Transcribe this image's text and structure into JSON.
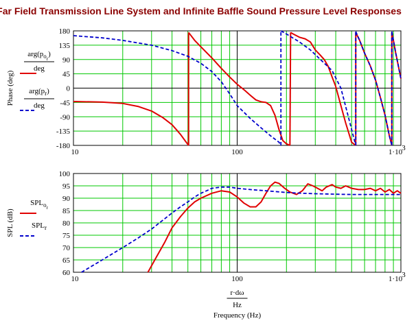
{
  "title": "Far Field Transmission Line System and Infinite Baffle Sound Pressure Level Responses",
  "colors": {
    "grid": "#00c800",
    "plot_bg": "#ffffff",
    "red": "#e00000",
    "blue": "#0000cc"
  },
  "chart_data": [
    {
      "type": "line",
      "xscale": "log",
      "xlim": [
        10,
        1000
      ],
      "ylim": [
        -180,
        180
      ],
      "yticks": [
        180,
        135,
        90,
        45,
        0,
        -45,
        -90,
        -135,
        -180
      ],
      "xtick_labels": [
        "10",
        "100",
        "1·10"
      ],
      "xtick_exponent": "3",
      "ylabel": "Phase (deg)",
      "legend": [
        {
          "num": "arg(p",
          "sub": "o",
          "sub2": "r",
          "close": ")",
          "den": "deg",
          "style": "solid",
          "color": "#e00000"
        },
        {
          "num": "arg(p",
          "sub": "r",
          "sub2": "",
          "close": ")",
          "den": "deg",
          "style": "dashed",
          "color": "#0000cc"
        }
      ],
      "series": [
        {
          "style": "solid",
          "color": "#e00000",
          "segments": [
            {
              "x": [
                10,
                15,
                20,
                25,
                30,
                35,
                40,
                45,
                48,
                50.5
              ],
              "y": [
                -42,
                -44,
                -48,
                -58,
                -72,
                -92,
                -115,
                -145,
                -165,
                -180
              ]
            },
            {
              "x": [
                50.5,
                55,
                60,
                70,
                80,
                90,
                100,
                110,
                120,
                130,
                140,
                150,
                160,
                170,
                180,
                190,
                200,
                210
              ],
              "y": [
                175,
                150,
                130,
                95,
                62,
                35,
                12,
                -5,
                -22,
                -37,
                -43,
                -45,
                -55,
                -85,
                -130,
                -165,
                -175,
                -180
              ]
            },
            {
              "x": [
                212,
                220,
                240,
                260,
                280,
                300,
                320,
                340,
                360,
                380,
                400,
                430,
                460,
                500,
                530
              ],
              "y": [
                175,
                170,
                160,
                155,
                145,
                120,
                105,
                90,
                68,
                35,
                5,
                -55,
                -110,
                -170,
                -180
              ]
            },
            {
              "x": [
                530,
                560,
                600,
                650,
                700,
                750,
                800,
                850,
                880
              ],
              "y": [
                175,
                150,
                110,
                70,
                25,
                -30,
                -85,
                -150,
                -180
              ]
            },
            {
              "x": [
                880,
                900,
                930,
                960,
                1000
              ],
              "y": [
                175,
                150,
                110,
                75,
                30
              ]
            }
          ]
        },
        {
          "style": "dashed",
          "color": "#0000cc",
          "segments": [
            {
              "x": [
                10,
                15,
                20,
                30,
                40,
                50,
                60,
                70,
                80,
                90,
                100,
                120,
                140,
                160,
                180,
                185
              ],
              "y": [
                165,
                158,
                150,
                135,
                118,
                100,
                78,
                52,
                20,
                -18,
                -55,
                -95,
                -125,
                -150,
                -170,
                -180
              ]
            },
            {
              "x": [
                185,
                200,
                240,
                280,
                330,
                380,
                430,
                500,
                530
              ],
              "y": [
                180,
                170,
                145,
                120,
                85,
                55,
                0,
                -130,
                -180
              ]
            },
            {
              "x": [
                530,
                560,
                600,
                650,
                700,
                750,
                800,
                850,
                880
              ],
              "y": [
                178,
                150,
                110,
                70,
                25,
                -30,
                -85,
                -150,
                -180
              ]
            },
            {
              "x": [
                880,
                900,
                930,
                960,
                1000
              ],
              "y": [
                178,
                150,
                110,
                75,
                30
              ]
            }
          ]
        }
      ]
    },
    {
      "type": "line",
      "xscale": "log",
      "xlim": [
        10,
        1000
      ],
      "ylim": [
        60,
        100
      ],
      "yticks": [
        100,
        95,
        90,
        85,
        80,
        75,
        70,
        65,
        60
      ],
      "xtick_labels": [
        "10",
        "100",
        "1·10"
      ],
      "xtick_exponent": "3",
      "ylabel": "SPL (dB)",
      "xlabel": {
        "num": "r·dω",
        "den": "Hz",
        "caption": "Frequency (Hz)"
      },
      "legend": [
        {
          "num": "SPL",
          "sub": "o",
          "sub2": "r",
          "style": "solid",
          "color": "#e00000"
        },
        {
          "num": "SPL",
          "sub": "r",
          "sub2": "",
          "style": "dashed",
          "color": "#0000cc"
        }
      ],
      "series": [
        {
          "style": "solid",
          "color": "#e00000",
          "segments": [
            {
              "x": [
                28.5,
                32,
                36,
                40,
                45,
                50,
                55,
                60,
                70,
                80,
                90,
                100,
                110,
                120,
                130,
                140,
                150,
                160,
                170,
                180,
                195,
                210,
                230,
                250,
                270,
                290,
                310,
                330,
                350,
                380,
                400,
                430,
                460,
                500,
                550,
                600,
                650,
                700,
                750,
                800,
                850,
                900,
                950,
                1000
              ],
              "y": [
                60,
                66,
                72,
                78,
                82.5,
                86,
                88.5,
                90,
                92,
                93,
                92.5,
                90.5,
                88,
                86.5,
                86.5,
                88.5,
                92,
                95,
                96.5,
                96,
                94,
                92.5,
                91.5,
                93,
                95.8,
                95,
                94,
                93,
                94.5,
                95.5,
                94.5,
                94,
                95,
                94,
                93.5,
                93.5,
                94,
                93,
                94,
                92.5,
                93.5,
                92,
                93,
                92
              ]
            }
          ]
        },
        {
          "style": "dashed",
          "color": "#0000cc",
          "segments": [
            {
              "x": [
                11.2,
                15,
                20,
                25,
                30,
                35,
                40,
                45,
                50,
                55,
                60,
                65,
                70,
                80,
                90,
                100,
                120,
                150,
                200,
                250,
                300,
                400,
                500,
                700,
                1000
              ],
              "y": [
                60,
                65,
                70,
                74,
                77.5,
                81,
                84,
                86.5,
                88.5,
                90.5,
                92,
                93,
                94,
                94.5,
                94.5,
                94,
                93.5,
                93,
                92.3,
                92,
                91.8,
                91.6,
                91.5,
                91.5,
                91.5
              ]
            }
          ]
        }
      ]
    }
  ]
}
